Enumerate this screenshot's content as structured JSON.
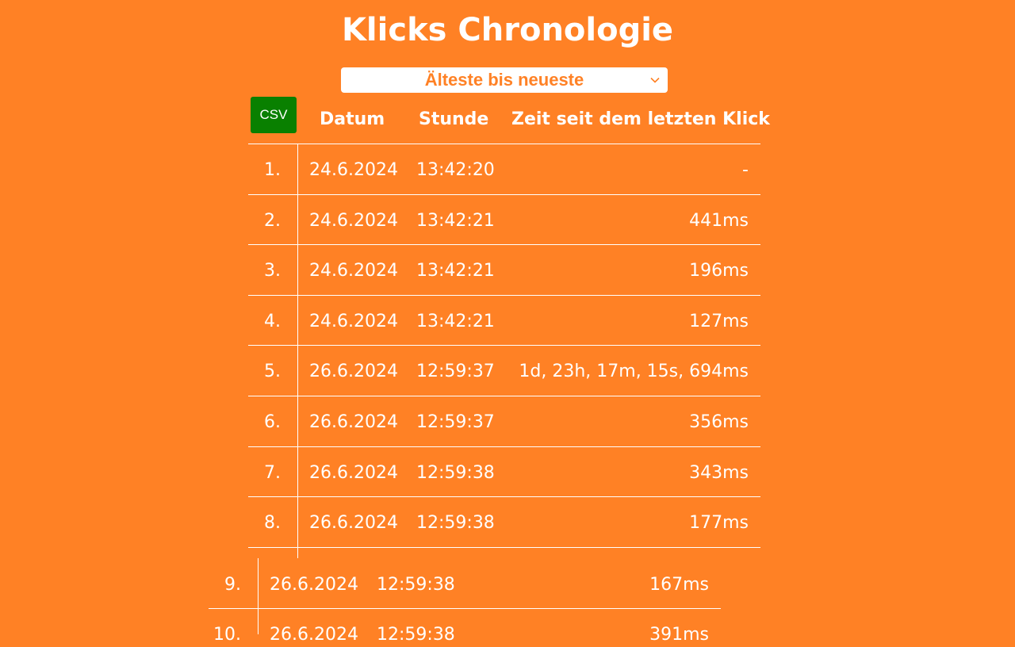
{
  "title": "Klicks Chronologie",
  "sort": {
    "selected": "Älteste bis neueste",
    "chevron_icon": "chevron-down-icon"
  },
  "csv_button_label": "CSV",
  "columns": {
    "date": "Datum",
    "hour": "Stunde",
    "since": "Zeit seit dem letzten Klick"
  },
  "rows": [
    {
      "num": "1.",
      "date": "24.6.2024",
      "time": "13:42:20",
      "since": "-"
    },
    {
      "num": "2.",
      "date": "24.6.2024",
      "time": "13:42:21",
      "since": "441ms"
    },
    {
      "num": "3.",
      "date": "24.6.2024",
      "time": "13:42:21",
      "since": "196ms"
    },
    {
      "num": "4.",
      "date": "24.6.2024",
      "time": "13:42:21",
      "since": "127ms"
    },
    {
      "num": "5.",
      "date": "26.6.2024",
      "time": "12:59:37",
      "since": "1d, 23h, 17m, 15s, 694ms"
    },
    {
      "num": "6.",
      "date": "26.6.2024",
      "time": "12:59:37",
      "since": "356ms"
    },
    {
      "num": "7.",
      "date": "26.6.2024",
      "time": "12:59:38",
      "since": "343ms"
    },
    {
      "num": "8.",
      "date": "26.6.2024",
      "time": "12:59:38",
      "since": "177ms"
    },
    {
      "num": "9.",
      "date": "26.6.2024",
      "time": "12:59:38",
      "since": "167ms"
    },
    {
      "num": "10.",
      "date": "26.6.2024",
      "time": "12:59:38",
      "since": "391ms"
    }
  ],
  "colors": {
    "background": "#ff8125",
    "csv_button": "#098000",
    "text": "#ffffff"
  }
}
